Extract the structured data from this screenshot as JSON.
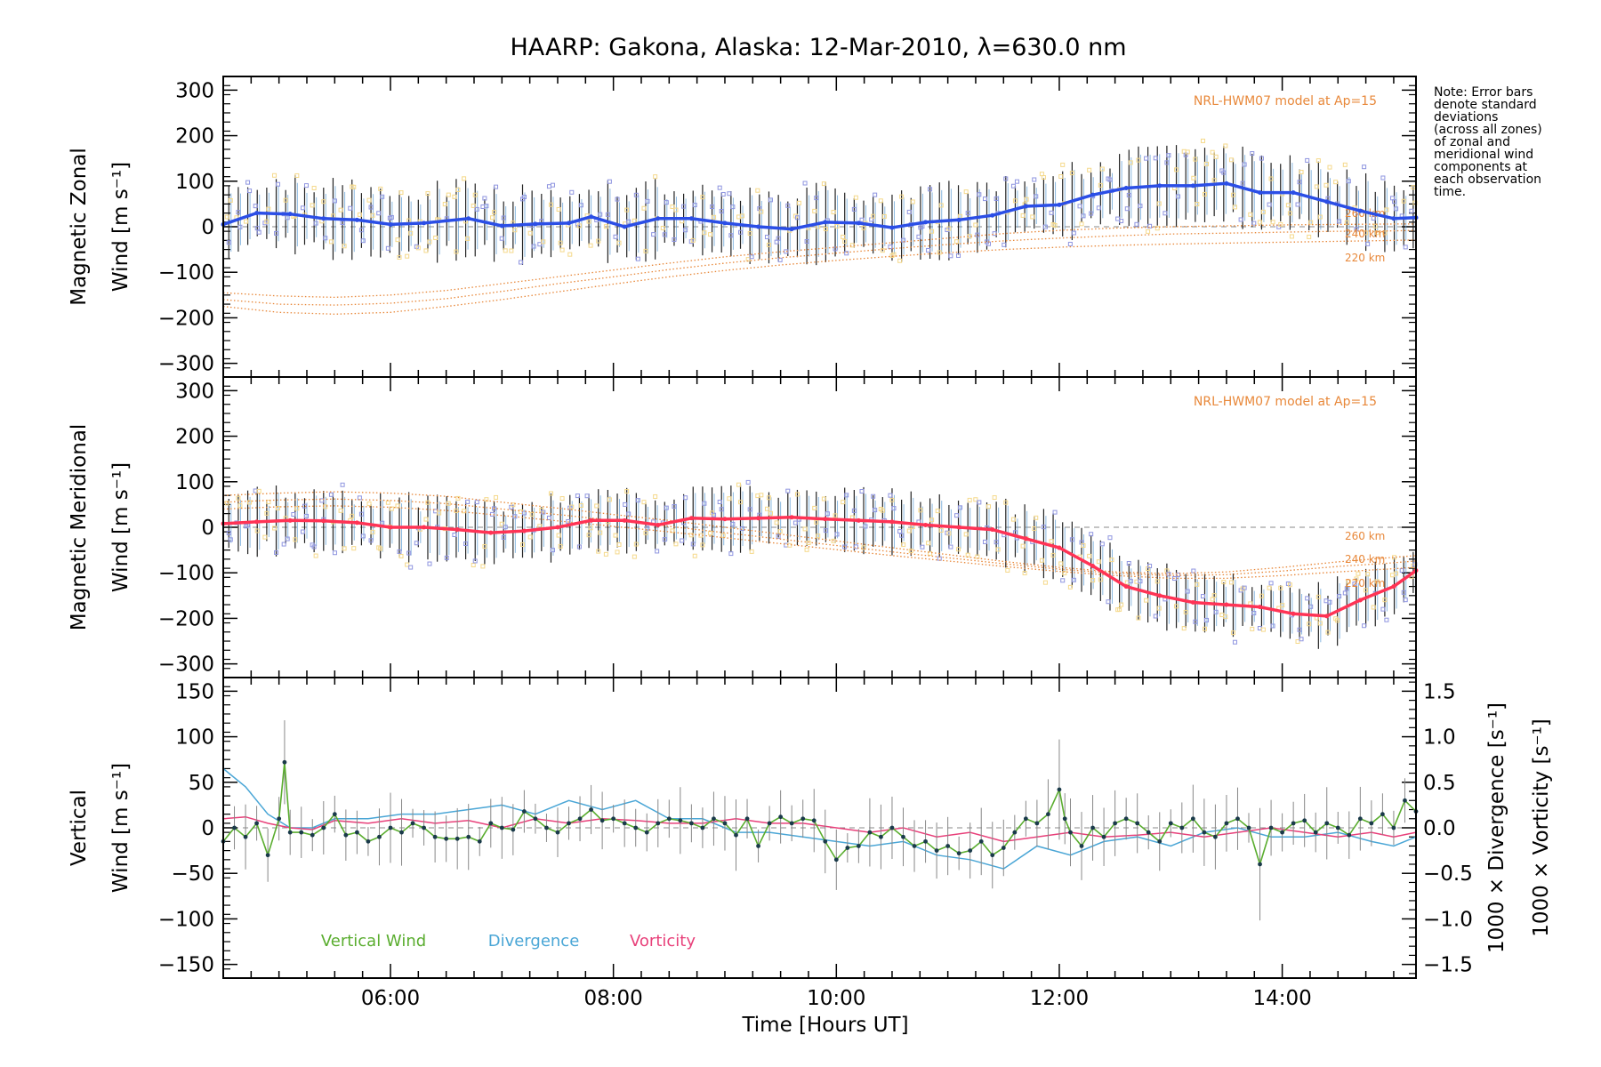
{
  "title": "HAARP: Gakona,  Alaska: 12-Mar-2010, λ=630.0 nm",
  "note_lines": [
    "Note: Error bars",
    "denote standard",
    "deviations",
    "(across all zones)",
    "of zonal and",
    "meridional wind",
    "components at",
    "each observation",
    "time."
  ],
  "x_axis": {
    "label": "Time [Hours UT]",
    "range_hours": [
      4.5,
      15.2
    ],
    "ticks": [
      {
        "value": 6,
        "label": "06:00"
      },
      {
        "value": 8,
        "label": "08:00"
      },
      {
        "value": 10,
        "label": "10:00"
      },
      {
        "value": 12,
        "label": "12:00"
      },
      {
        "value": 14,
        "label": "14:00"
      }
    ]
  },
  "colors": {
    "zonal": "#2b4ee6",
    "meridional": "#ff3355",
    "model": "#e8883a",
    "vertical": "#5aad2f",
    "divergence": "#4aa6d6",
    "vorticity": "#e8407a",
    "zone_points": "#8f95e0",
    "error_bar": "#222222"
  },
  "chart_data": [
    {
      "type": "line",
      "panel": "zonal",
      "ylabel_line1": "Magnetic Zonal",
      "ylabel_line2": "Wind [m s⁻¹]",
      "ylim": [
        -330,
        330
      ],
      "yticks": [
        -300,
        -200,
        -100,
        0,
        100,
        200,
        300
      ],
      "model_label": "NRL-HWM07 model at Ap=15",
      "series": [
        {
          "x": [
            4.5,
            4.8,
            5.1,
            5.4,
            5.7,
            6.0,
            6.3,
            6.7,
            7.0,
            7.3,
            7.6,
            7.8,
            8.1,
            8.4,
            8.7,
            9.0,
            9.3,
            9.6,
            9.9,
            10.2,
            10.5,
            10.8,
            11.1,
            11.4,
            11.7,
            12.0,
            12.3,
            12.6,
            12.9,
            13.2,
            13.5,
            13.8,
            14.1,
            14.4,
            14.7,
            15.0,
            15.2
          ],
          "y": [
            5,
            30,
            28,
            18,
            15,
            5,
            8,
            18,
            2,
            6,
            8,
            22,
            0,
            18,
            18,
            8,
            0,
            -5,
            10,
            8,
            -2,
            10,
            15,
            25,
            45,
            48,
            70,
            85,
            90,
            90,
            95,
            75,
            75,
            55,
            35,
            18,
            20
          ]
        }
      ],
      "model_curves": [
        {
          "label": "260 km",
          "x": [
            4.5,
            5.0,
            5.5,
            6.0,
            6.5,
            7.0,
            7.5,
            8.0,
            8.5,
            9.0,
            9.5,
            10.0,
            10.5,
            11.0,
            11.5,
            12.0,
            12.5,
            13.0,
            13.5,
            14.0,
            14.5,
            15.0,
            15.2
          ],
          "y": [
            -145,
            -152,
            -155,
            -150,
            -140,
            -125,
            -110,
            -95,
            -80,
            -66,
            -55,
            -45,
            -35,
            -25,
            -15,
            -8,
            -3,
            0,
            2,
            4,
            5,
            6,
            6
          ]
        },
        {
          "label": "240 km",
          "x": [
            4.5,
            5.0,
            5.5,
            6.0,
            6.5,
            7.0,
            7.5,
            8.0,
            8.5,
            9.0,
            9.5,
            10.0,
            10.5,
            11.0,
            11.5,
            12.0,
            12.5,
            13.0,
            13.5,
            14.0,
            14.5,
            15.0,
            15.2
          ],
          "y": [
            -160,
            -170,
            -172,
            -168,
            -158,
            -142,
            -125,
            -110,
            -94,
            -80,
            -68,
            -58,
            -48,
            -39,
            -31,
            -25,
            -20,
            -16,
            -14,
            -12,
            -10,
            -9,
            -8
          ]
        },
        {
          "label": "220 km",
          "x": [
            4.5,
            5.0,
            5.5,
            6.0,
            6.5,
            7.0,
            7.5,
            8.0,
            8.5,
            9.0,
            9.5,
            10.0,
            10.5,
            11.0,
            11.5,
            12.0,
            12.5,
            13.0,
            13.5,
            14.0,
            14.5,
            15.0,
            15.2
          ],
          "y": [
            -175,
            -188,
            -192,
            -188,
            -175,
            -160,
            -143,
            -126,
            -110,
            -96,
            -84,
            -74,
            -65,
            -57,
            -50,
            -45,
            -41,
            -38,
            -36,
            -34,
            -32,
            -30,
            -29
          ]
        }
      ],
      "std_dev": 70
    },
    {
      "type": "line",
      "panel": "meridional",
      "ylabel_line1": "Magnetic Meridional",
      "ylabel_line2": "Wind [m s⁻¹]",
      "ylim": [
        -330,
        330
      ],
      "yticks": [
        -300,
        -200,
        -100,
        0,
        100,
        200,
        300
      ],
      "model_label": "NRL-HWM07 model at Ap=15",
      "series": [
        {
          "x": [
            4.5,
            4.8,
            5.1,
            5.4,
            5.7,
            6.0,
            6.3,
            6.6,
            6.9,
            7.2,
            7.5,
            7.8,
            8.1,
            8.4,
            8.7,
            9.0,
            9.3,
            9.6,
            9.9,
            10.2,
            10.5,
            10.8,
            11.1,
            11.4,
            11.7,
            12.0,
            12.3,
            12.6,
            12.9,
            13.2,
            13.5,
            13.8,
            14.1,
            14.4,
            14.7,
            15.0,
            15.2
          ],
          "y": [
            8,
            12,
            15,
            14,
            10,
            0,
            0,
            -5,
            -12,
            -8,
            0,
            15,
            15,
            5,
            20,
            18,
            20,
            22,
            18,
            15,
            12,
            5,
            0,
            -5,
            -25,
            -45,
            -85,
            -130,
            -150,
            -165,
            -170,
            -175,
            -190,
            -195,
            -160,
            -130,
            -95
          ]
        }
      ],
      "model_curves": [
        {
          "label": "260 km",
          "x": [
            4.5,
            5.0,
            5.5,
            6.0,
            6.5,
            7.0,
            7.5,
            8.0,
            8.5,
            9.0,
            9.5,
            10.0,
            10.5,
            11.0,
            11.5,
            12.0,
            12.5,
            13.0,
            13.5,
            14.0,
            14.5,
            15.0,
            15.2
          ],
          "y": [
            70,
            75,
            78,
            75,
            68,
            55,
            42,
            28,
            15,
            0,
            -15,
            -30,
            -45,
            -60,
            -75,
            -88,
            -98,
            -102,
            -98,
            -88,
            -76,
            -66,
            -62
          ]
        },
        {
          "label": "240 km",
          "x": [
            4.5,
            5.0,
            5.5,
            6.0,
            6.5,
            7.0,
            7.5,
            8.0,
            8.5,
            9.0,
            9.5,
            10.0,
            10.5,
            11.0,
            11.5,
            12.0,
            12.5,
            13.0,
            13.5,
            14.0,
            14.5,
            15.0,
            15.2
          ],
          "y": [
            55,
            60,
            62,
            59,
            52,
            40,
            28,
            15,
            2,
            -12,
            -26,
            -40,
            -54,
            -67,
            -80,
            -92,
            -101,
            -106,
            -104,
            -96,
            -86,
            -78,
            -74
          ]
        },
        {
          "label": "220 km",
          "x": [
            4.5,
            5.0,
            5.5,
            6.0,
            6.5,
            7.0,
            7.5,
            8.0,
            8.5,
            9.0,
            9.5,
            10.0,
            10.5,
            11.0,
            11.5,
            12.0,
            12.5,
            13.0,
            13.5,
            14.0,
            14.5,
            15.0,
            15.2
          ],
          "y": [
            40,
            45,
            47,
            44,
            37,
            26,
            14,
            2,
            -10,
            -23,
            -36,
            -49,
            -62,
            -74,
            -86,
            -97,
            -106,
            -112,
            -112,
            -106,
            -98,
            -91,
            -88
          ]
        }
      ],
      "std_dev": 60
    },
    {
      "type": "line",
      "panel": "vertical",
      "ylabel_line1": "Vertical",
      "ylabel_line2": "Wind [m s⁻¹]",
      "ylabel_right1": "1000 × Divergence [s⁻¹]",
      "ylabel_right2": "1000 × Vorticity [s⁻¹]",
      "ylim": [
        -165,
        165
      ],
      "yticks": [
        -150,
        -100,
        -50,
        0,
        50,
        100,
        150
      ],
      "y2lim": [
        -1.65,
        1.65
      ],
      "y2ticks": [
        -1.5,
        -1.0,
        -0.5,
        0.0,
        0.5,
        1.0,
        1.5
      ],
      "y2ticklabels": [
        "−1.5",
        "−1.0",
        "−0.5",
        "0.0",
        "0.5",
        "1.0",
        "1.5"
      ],
      "legend": [
        "Vertical Wind",
        "Divergence",
        "Vorticity"
      ],
      "series": [
        {
          "name": "Vertical Wind",
          "x": [
            4.5,
            4.6,
            4.7,
            4.8,
            4.9,
            5.0,
            5.05,
            5.1,
            5.2,
            5.3,
            5.4,
            5.5,
            5.6,
            5.7,
            5.8,
            5.9,
            6.0,
            6.1,
            6.2,
            6.3,
            6.4,
            6.5,
            6.6,
            6.7,
            6.8,
            6.9,
            7.0,
            7.1,
            7.2,
            7.3,
            7.4,
            7.5,
            7.6,
            7.7,
            7.8,
            7.9,
            8.0,
            8.1,
            8.2,
            8.3,
            8.4,
            8.5,
            8.6,
            8.7,
            8.8,
            8.9,
            9.0,
            9.1,
            9.2,
            9.3,
            9.4,
            9.5,
            9.6,
            9.7,
            9.8,
            9.9,
            10.0,
            10.1,
            10.2,
            10.3,
            10.4,
            10.5,
            10.6,
            10.7,
            10.8,
            10.9,
            11.0,
            11.1,
            11.2,
            11.3,
            11.4,
            11.5,
            11.6,
            11.7,
            11.8,
            11.9,
            12.0,
            12.05,
            12.1,
            12.2,
            12.3,
            12.4,
            12.5,
            12.6,
            12.7,
            12.8,
            12.9,
            13.0,
            13.1,
            13.2,
            13.3,
            13.4,
            13.5,
            13.6,
            13.7,
            13.8,
            13.9,
            14.0,
            14.1,
            14.2,
            14.3,
            14.4,
            14.5,
            14.6,
            14.7,
            14.8,
            14.9,
            15.0,
            15.1,
            15.2
          ],
          "y": [
            -15,
            0,
            -10,
            5,
            -30,
            10,
            72,
            -5,
            -5,
            -8,
            0,
            15,
            -8,
            -5,
            -15,
            -10,
            0,
            -5,
            5,
            0,
            -10,
            -12,
            -12,
            -10,
            -15,
            5,
            0,
            -2,
            18,
            10,
            0,
            -5,
            5,
            10,
            20,
            8,
            10,
            5,
            0,
            -5,
            5,
            10,
            8,
            5,
            0,
            10,
            5,
            -8,
            10,
            -20,
            5,
            12,
            5,
            10,
            8,
            -15,
            -35,
            -22,
            -20,
            -5,
            -10,
            0,
            -10,
            -20,
            -15,
            -25,
            -20,
            -28,
            -25,
            -15,
            -30,
            -22,
            -5,
            10,
            5,
            15,
            42,
            10,
            -5,
            -20,
            0,
            -10,
            5,
            10,
            5,
            -5,
            -15,
            5,
            0,
            10,
            -5,
            -10,
            5,
            10,
            0,
            -40,
            0,
            -5,
            5,
            8,
            -5,
            5,
            0,
            -8,
            10,
            5,
            15,
            0,
            30,
            18
          ]
        },
        {
          "name": "Divergence",
          "x": [
            4.5,
            4.7,
            4.9,
            5.1,
            5.3,
            5.5,
            5.8,
            6.1,
            6.4,
            6.7,
            7.0,
            7.3,
            7.6,
            7.9,
            8.2,
            8.5,
            8.8,
            9.1,
            9.4,
            9.7,
            10.0,
            10.3,
            10.6,
            10.9,
            11.2,
            11.5,
            11.8,
            12.1,
            12.4,
            12.7,
            13.0,
            13.3,
            13.6,
            13.9,
            14.2,
            14.5,
            14.8,
            15.0,
            15.2
          ],
          "y": [
            0.65,
            0.45,
            0.15,
            0.0,
            0.0,
            0.1,
            0.1,
            0.15,
            0.15,
            0.2,
            0.25,
            0.15,
            0.3,
            0.2,
            0.3,
            0.1,
            0.1,
            -0.05,
            -0.05,
            -0.1,
            -0.15,
            -0.2,
            -0.15,
            -0.3,
            -0.35,
            -0.45,
            -0.2,
            -0.3,
            -0.15,
            -0.1,
            -0.2,
            -0.05,
            0.0,
            -0.1,
            -0.1,
            -0.05,
            -0.15,
            -0.2,
            -0.1
          ]
        },
        {
          "name": "Vorticity",
          "x": [
            4.5,
            4.7,
            4.9,
            5.1,
            5.3,
            5.5,
            5.8,
            6.1,
            6.4,
            6.7,
            7.0,
            7.3,
            7.6,
            7.9,
            8.2,
            8.5,
            8.8,
            9.1,
            9.4,
            9.7,
            10.0,
            10.3,
            10.6,
            10.9,
            11.2,
            11.5,
            11.8,
            12.1,
            12.4,
            12.7,
            13.0,
            13.3,
            13.6,
            13.9,
            14.2,
            14.5,
            14.8,
            15.0,
            15.2
          ],
          "y": [
            0.1,
            0.12,
            0.05,
            0.0,
            -0.02,
            0.08,
            0.05,
            0.1,
            0.05,
            0.08,
            0.0,
            0.1,
            0.05,
            0.1,
            0.08,
            0.05,
            0.05,
            0.1,
            0.05,
            0.05,
            0.0,
            -0.05,
            0.0,
            -0.1,
            -0.05,
            -0.15,
            -0.1,
            -0.05,
            -0.1,
            -0.08,
            -0.05,
            -0.1,
            -0.05,
            0.0,
            -0.05,
            -0.1,
            -0.05,
            -0.1,
            -0.05
          ]
        }
      ]
    }
  ]
}
